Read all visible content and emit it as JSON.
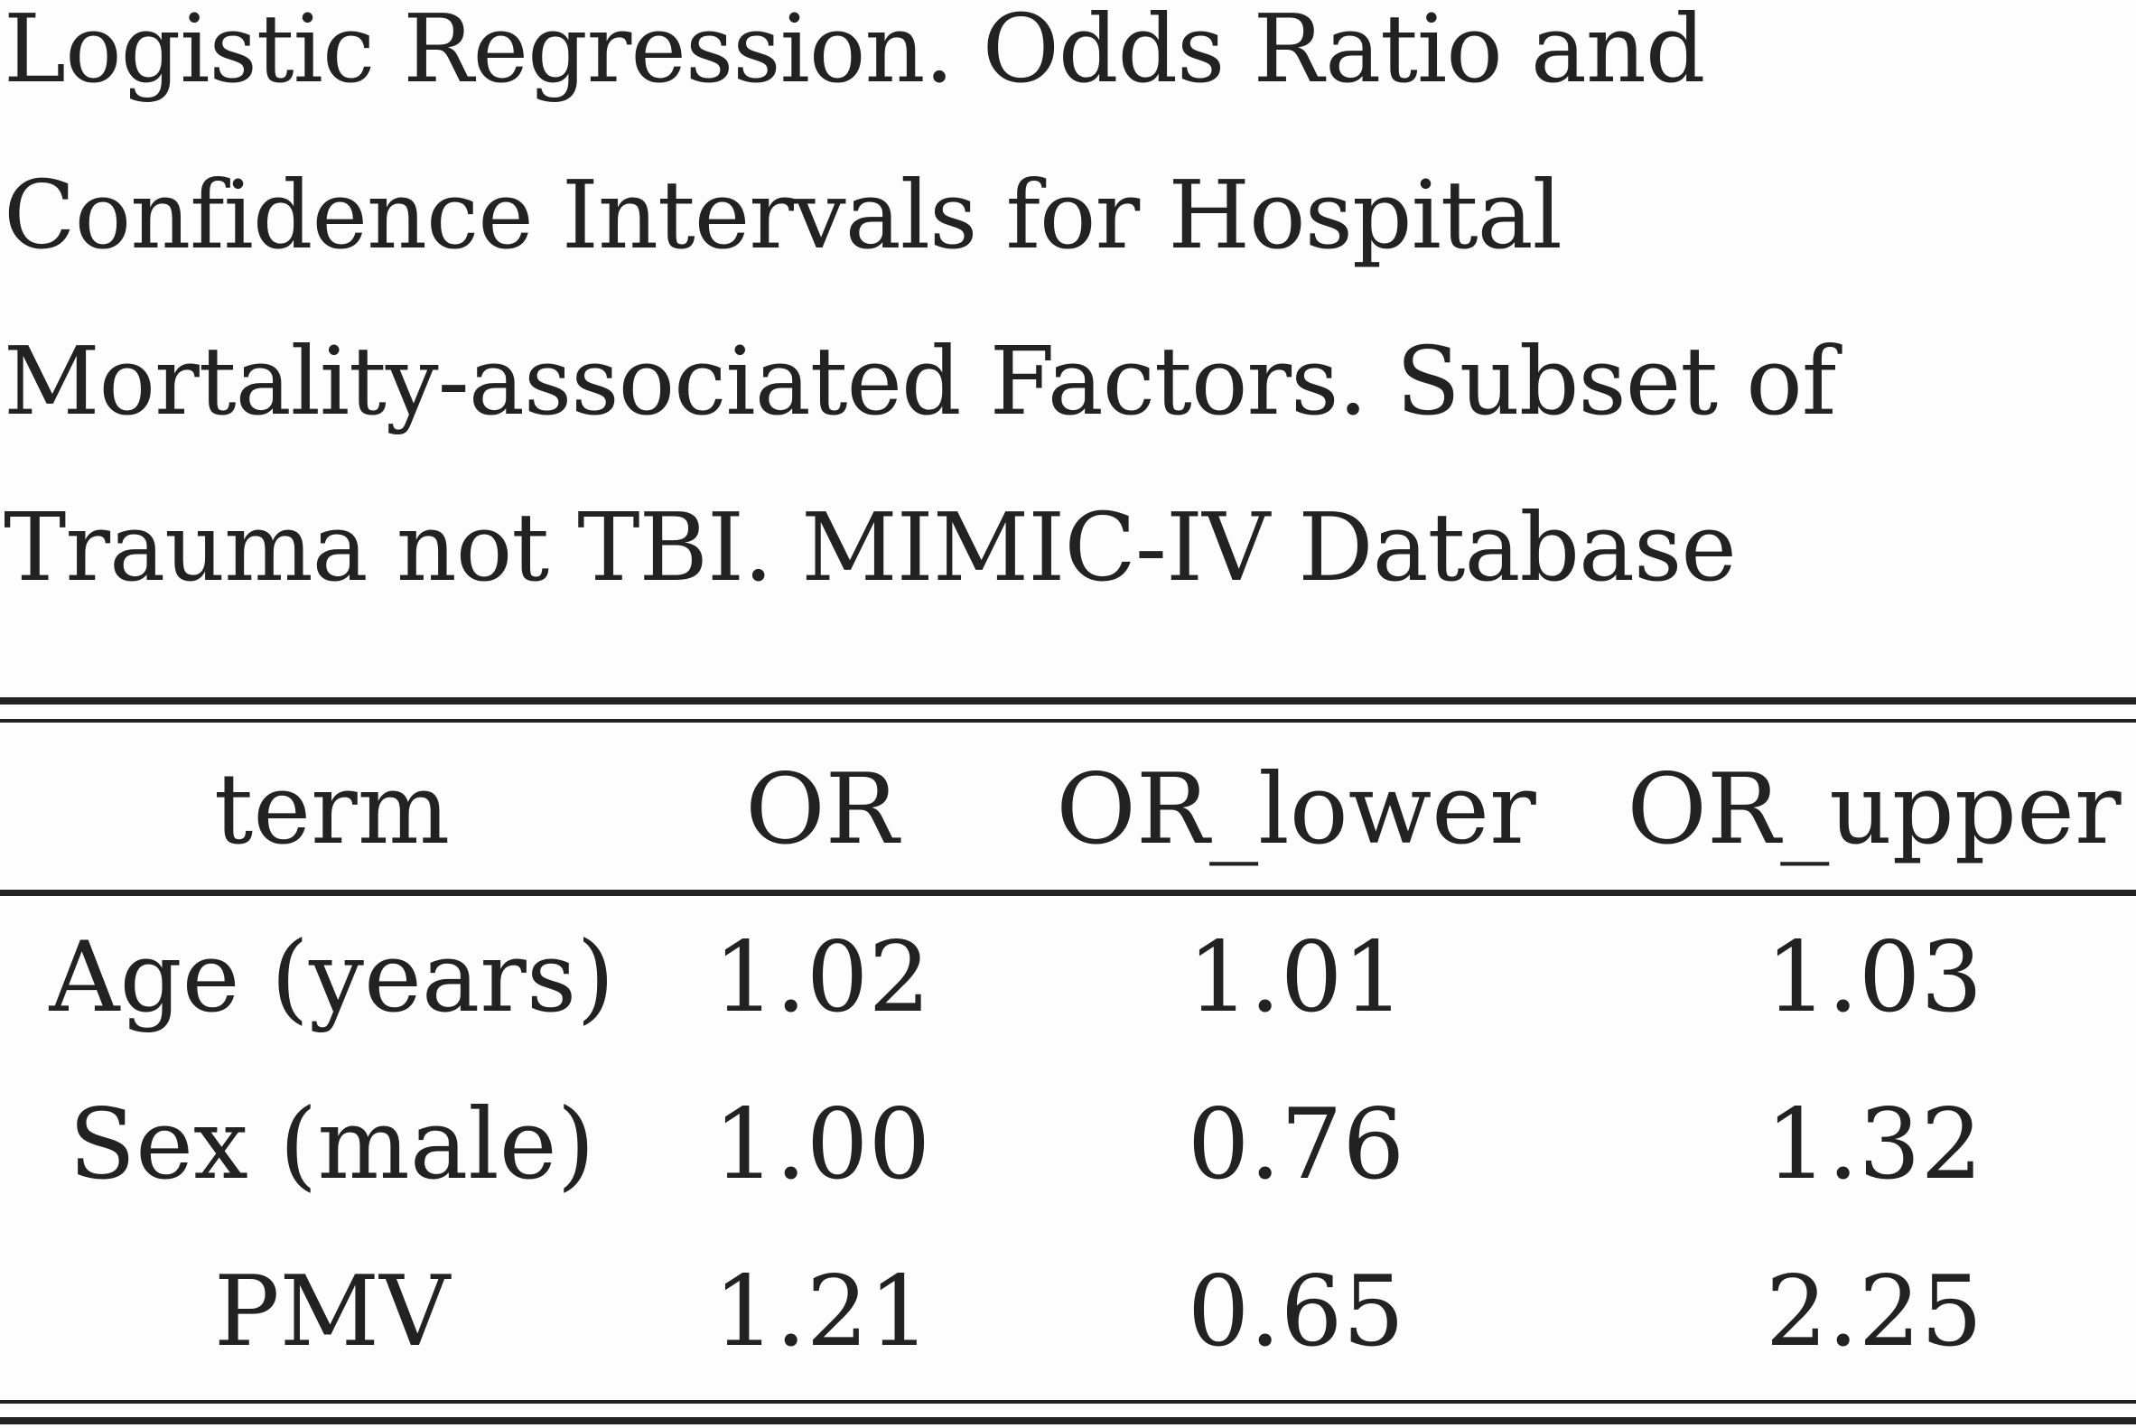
{
  "caption": "Logistic Regression. Odds Ratio and\nConfidence Intervals for Hospital\nMortality-associated Factors. Subset of\nTrauma not TBI. MIMIC-IV Database",
  "table": {
    "headers": [
      "term",
      "OR",
      "OR_lower",
      "OR_upper"
    ],
    "rows": [
      [
        "Age (years)",
        "1.02",
        "1.01",
        "1.03"
      ],
      [
        "Sex (male)",
        "1.00",
        "0.76",
        "1.32"
      ],
      [
        "PMV",
        "1.21",
        "0.65",
        "2.25"
      ]
    ]
  }
}
